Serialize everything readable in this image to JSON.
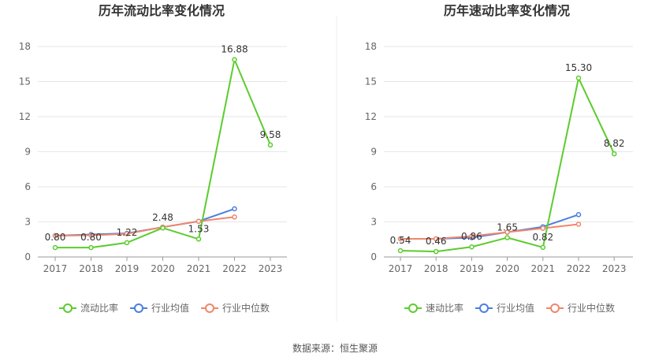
{
  "source_text": "数据来源：恒生聚源",
  "colors": {
    "main": "#5ccc2e",
    "industry_avg": "#4a7fe0",
    "industry_median": "#f0866a",
    "grid": "#e6e6e6",
    "axis": "#999999"
  },
  "chart_data": [
    {
      "type": "line",
      "title": "历年流动比率变化情况",
      "categories": [
        "2017",
        "2018",
        "2019",
        "2020",
        "2021",
        "2022",
        "2023"
      ],
      "yticks": [
        "0",
        "3",
        "6",
        "9",
        "12",
        "15",
        "18"
      ],
      "ylim": [
        0,
        18
      ],
      "grid": true,
      "legend_position": "bottom",
      "series": [
        {
          "name": "流动比率",
          "key": "main",
          "values": [
            0.8,
            0.8,
            1.22,
            2.48,
            1.53,
            16.88,
            9.58
          ],
          "labels": [
            "0.80",
            "0.80",
            "1.22",
            "2.48",
            "1.53",
            "16.88",
            "9.58"
          ]
        },
        {
          "name": "行业均值",
          "key": "industry_avg",
          "values": [
            1.82,
            1.92,
            2.02,
            2.55,
            3.05,
            4.12,
            null
          ]
        },
        {
          "name": "行业中位数",
          "key": "industry_median",
          "values": [
            1.82,
            1.85,
            1.98,
            2.55,
            3.05,
            3.42,
            null
          ]
        }
      ]
    },
    {
      "type": "line",
      "title": "历年速动比率变化情况",
      "categories": [
        "2017",
        "2018",
        "2019",
        "2020",
        "2021",
        "2022",
        "2023"
      ],
      "yticks": [
        "0",
        "3",
        "6",
        "9",
        "12",
        "15",
        "18"
      ],
      "ylim": [
        0,
        18
      ],
      "grid": true,
      "legend_position": "bottom",
      "series": [
        {
          "name": "速动比率",
          "key": "main",
          "values": [
            0.54,
            0.46,
            0.86,
            1.65,
            0.82,
            15.3,
            8.82
          ],
          "labels": [
            "0.54",
            "0.46",
            "0.86",
            "1.65",
            "0.82",
            "15.30",
            "8.82"
          ]
        },
        {
          "name": "行业均值",
          "key": "industry_avg",
          "values": [
            1.55,
            1.55,
            1.65,
            2.12,
            2.58,
            3.62,
            null
          ]
        },
        {
          "name": "行业中位数",
          "key": "industry_median",
          "values": [
            1.55,
            1.55,
            1.78,
            2.12,
            2.45,
            2.8,
            null
          ]
        }
      ]
    }
  ]
}
